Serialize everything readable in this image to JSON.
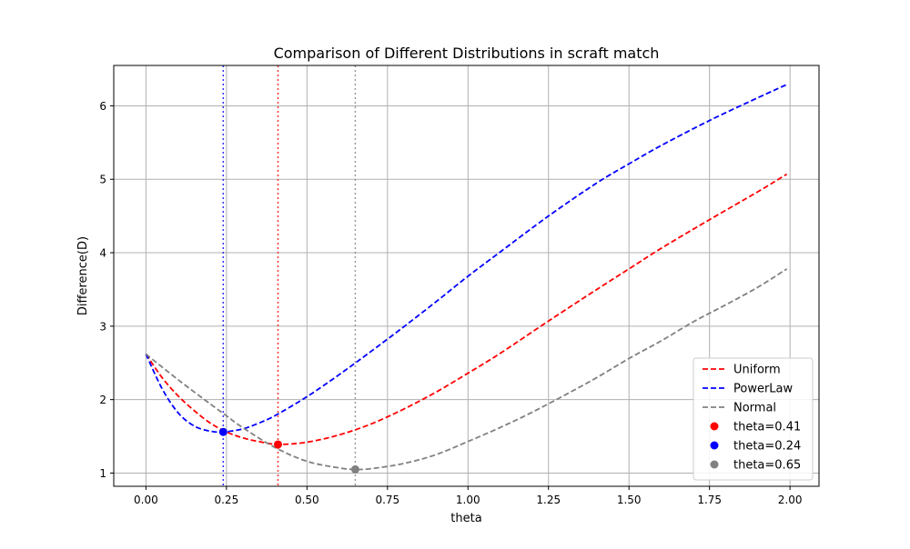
{
  "chart_data": {
    "type": "line",
    "title": "Comparison of Different Distributions in scraft match",
    "xlabel": "theta",
    "ylabel": "Difference(D)",
    "xlim": [
      -0.1,
      2.09
    ],
    "ylim": [
      0.82,
      6.55
    ],
    "xticks": [
      0.0,
      0.25,
      0.5,
      0.75,
      1.0,
      1.25,
      1.5,
      1.75,
      2.0
    ],
    "xtick_labels": [
      "0.00",
      "0.25",
      "0.50",
      "0.75",
      "1.00",
      "1.25",
      "1.50",
      "1.75",
      "2.00"
    ],
    "yticks": [
      1,
      2,
      3,
      4,
      5,
      6
    ],
    "ytick_labels": [
      "1",
      "2",
      "3",
      "4",
      "5",
      "6"
    ],
    "grid": true,
    "legend_position": "lower-right",
    "series": [
      {
        "name": "Uniform",
        "color": "#ff0000",
        "style": "dashed",
        "x": [
          0.0,
          0.05,
          0.1,
          0.15,
          0.2,
          0.25,
          0.3,
          0.35,
          0.41,
          0.5,
          0.6,
          0.7,
          0.8,
          0.9,
          1.0,
          1.1,
          1.25,
          1.4,
          1.5,
          1.6,
          1.75,
          1.9,
          1.99
        ],
        "y": [
          2.62,
          2.3,
          2.05,
          1.85,
          1.68,
          1.56,
          1.48,
          1.43,
          1.39,
          1.42,
          1.52,
          1.67,
          1.87,
          2.1,
          2.36,
          2.63,
          3.07,
          3.5,
          3.78,
          4.06,
          4.45,
          4.83,
          5.07
        ]
      },
      {
        "name": "PowerLaw",
        "color": "#0000ff",
        "style": "dashed",
        "x": [
          0.0,
          0.05,
          0.1,
          0.15,
          0.2,
          0.24,
          0.3,
          0.35,
          0.4,
          0.5,
          0.6,
          0.7,
          0.8,
          0.9,
          1.0,
          1.1,
          1.25,
          1.4,
          1.5,
          1.6,
          1.75,
          1.9,
          1.99
        ],
        "y": [
          2.62,
          2.15,
          1.82,
          1.64,
          1.57,
          1.56,
          1.6,
          1.68,
          1.78,
          2.04,
          2.34,
          2.66,
          2.99,
          3.33,
          3.68,
          4.01,
          4.5,
          4.95,
          5.21,
          5.46,
          5.8,
          6.11,
          6.29
        ]
      },
      {
        "name": "Normal",
        "color": "#808080",
        "style": "dashed",
        "x": [
          0.0,
          0.1,
          0.2,
          0.25,
          0.3,
          0.4,
          0.5,
          0.6,
          0.65,
          0.7,
          0.8,
          0.9,
          1.0,
          1.1,
          1.2,
          1.3,
          1.4,
          1.5,
          1.6,
          1.7,
          1.8,
          1.9,
          1.99
        ],
        "y": [
          2.62,
          2.27,
          1.94,
          1.78,
          1.62,
          1.35,
          1.16,
          1.07,
          1.05,
          1.06,
          1.13,
          1.25,
          1.43,
          1.62,
          1.83,
          2.06,
          2.3,
          2.56,
          2.8,
          3.06,
          3.29,
          3.53,
          3.78
        ]
      }
    ],
    "minima": [
      {
        "label": "theta=0.41",
        "x": 0.41,
        "y": 1.39,
        "color": "#ff0000"
      },
      {
        "label": "theta=0.24",
        "x": 0.24,
        "y": 1.56,
        "color": "#0000ff"
      },
      {
        "label": "theta=0.65",
        "x": 0.65,
        "y": 1.05,
        "color": "#808080"
      }
    ]
  }
}
